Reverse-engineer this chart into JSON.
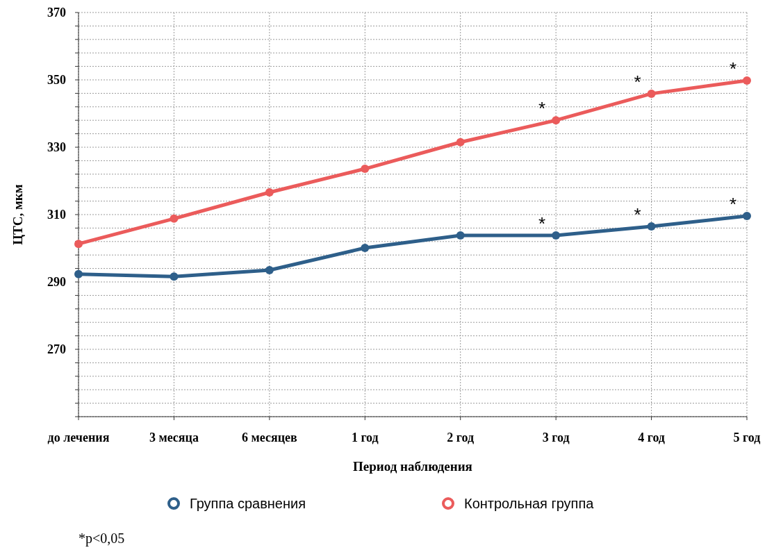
{
  "chart_data": {
    "type": "line",
    "xlabel": "Период наблюдения",
    "ylabel": "ЦТС, мкм",
    "categories": [
      "до лечения",
      "3 месяца",
      "6 месяцев",
      "1 год",
      "2 год",
      "3 год",
      "4 год",
      "5 год"
    ],
    "series": [
      {
        "name": "Группа сравнения",
        "color": "#2e5f8a",
        "values": [
          292.3,
          291.6,
          293.5,
          300.1,
          303.8,
          303.8,
          306.5,
          309.6
        ]
      },
      {
        "name": "Контрольная группа",
        "color": "#eb5b5b",
        "values": [
          301.3,
          308.8,
          316.6,
          323.6,
          331.5,
          338.0,
          345.9,
          349.8
        ]
      }
    ],
    "ylim": [
      250,
      370
    ],
    "yticks": [
      {
        "value": 250,
        "label": null
      },
      {
        "value": 254,
        "label": null
      },
      {
        "value": 258,
        "label": null
      },
      {
        "value": 262,
        "label": null
      },
      {
        "value": 266,
        "label": null
      },
      270,
      {
        "value": 274,
        "label": null
      },
      {
        "value": 278,
        "label": null
      },
      {
        "value": 282,
        "label": null
      },
      {
        "value": 286,
        "label": null
      },
      290,
      {
        "value": 294,
        "label": null
      },
      {
        "value": 298,
        "label": null
      },
      {
        "value": 302,
        "label": null
      },
      {
        "value": 306,
        "label": null
      },
      310,
      {
        "value": 314,
        "label": null
      },
      {
        "value": 318,
        "label": null
      },
      {
        "value": 322,
        "label": null
      },
      {
        "value": 326,
        "label": null
      },
      330,
      {
        "value": 334,
        "label": null
      },
      {
        "value": 338,
        "label": null
      },
      {
        "value": 342,
        "label": null
      },
      {
        "value": 346,
        "label": null
      },
      350,
      {
        "value": 354,
        "label": null
      },
      {
        "value": 358,
        "label": null
      },
      {
        "value": 362,
        "label": null
      },
      {
        "value": 366,
        "label": null
      },
      370
    ],
    "grid": true,
    "legend": "bottom",
    "marker": "circle",
    "line_style": "solid",
    "annotations": [
      {
        "text": "*",
        "x": "3 год",
        "y": 303.8
      },
      {
        "text": "*",
        "x": "4 год",
        "y": 306.5
      },
      {
        "text": "*",
        "x": "5 год",
        "y": 309.6
      },
      {
        "text": "*",
        "x": "3 год",
        "y": 338.0
      },
      {
        "text": "*",
        "x": "4 год",
        "y": 345.9
      },
      {
        "text": "*",
        "x": "5 год",
        "y": 349.8
      },
      "*p<0,05"
    ]
  }
}
